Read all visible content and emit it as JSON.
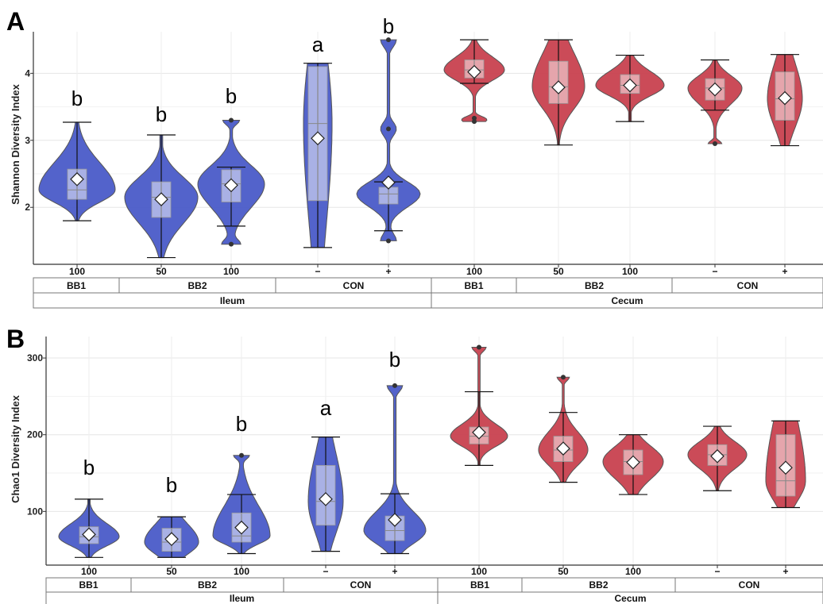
{
  "panels": [
    {
      "label": "A",
      "ylabel": "Shannon Diversity Index",
      "yticks": [
        2,
        3,
        4
      ],
      "ylim": [
        1.15,
        4.62
      ],
      "x_labels": [
        "100",
        "50",
        "100",
        "−",
        "+",
        "100",
        "50",
        "100",
        "−",
        "+"
      ],
      "group_labels": [
        "BB1",
        "BB2",
        "CON",
        "BB1",
        "BB2",
        "CON"
      ],
      "tissue_labels": [
        "Ileum",
        "Cecum"
      ],
      "letters": [
        "b",
        "b",
        "b",
        "a",
        "b",
        "",
        "",
        "",
        "",
        ""
      ]
    },
    {
      "label": "B",
      "ylabel": "Chao1 Diversity Index",
      "yticks": [
        100,
        200,
        300
      ],
      "ylim": [
        30,
        328
      ],
      "x_labels": [
        "100",
        "50",
        "100",
        "−",
        "+",
        "100",
        "50",
        "100",
        "−",
        "+"
      ],
      "group_labels": [
        "BB1",
        "BB2",
        "CON",
        "BB1",
        "BB2",
        "CON"
      ],
      "tissue_labels": [
        "Ileum",
        "Cecum"
      ],
      "letters": [
        "b",
        "b",
        "b",
        "a",
        "b",
        "",
        "",
        "",
        "",
        ""
      ]
    }
  ],
  "colors": {
    "ileum": "#4a5bc8",
    "cecum": "#c8414f"
  },
  "chart_data": [
    {
      "type": "violin",
      "title": "",
      "ylabel": "Shannon Diversity Index",
      "ylim": [
        1.15,
        4.62
      ],
      "grid": true,
      "categories": [
        "Ileum BB1 100",
        "Ileum BB2 50",
        "Ileum BB2 100",
        "Ileum CON −",
        "Ileum CON +",
        "Cecum BB1 100",
        "Cecum BB2 50",
        "Cecum BB2 100",
        "Cecum CON −",
        "Cecum CON +"
      ],
      "tissue": [
        "Ileum",
        "Ileum",
        "Ileum",
        "Ileum",
        "Ileum",
        "Cecum",
        "Cecum",
        "Cecum",
        "Cecum",
        "Cecum"
      ],
      "min": [
        1.8,
        1.25,
        1.45,
        1.4,
        1.5,
        3.28,
        2.93,
        3.28,
        2.95,
        2.92
      ],
      "max": [
        3.27,
        3.08,
        3.3,
        4.15,
        4.5,
        4.5,
        4.5,
        4.27,
        4.2,
        4.28
      ],
      "whisker_low": [
        1.8,
        1.25,
        1.72,
        1.4,
        1.65,
        3.85,
        2.93,
        3.28,
        3.45,
        2.92
      ],
      "whisker_high": [
        3.27,
        3.08,
        2.6,
        4.15,
        2.38,
        4.5,
        4.5,
        4.27,
        4.2,
        4.28
      ],
      "q1": [
        2.12,
        1.85,
        2.08,
        2.1,
        2.05,
        3.93,
        3.55,
        3.7,
        3.6,
        3.3
      ],
      "median": [
        2.26,
        2.15,
        2.35,
        3.25,
        2.2,
        4.05,
        3.8,
        3.82,
        3.78,
        3.62
      ],
      "q3": [
        2.57,
        2.38,
        2.56,
        4.1,
        2.3,
        4.2,
        4.18,
        3.98,
        3.92,
        4.02
      ],
      "mean": [
        2.42,
        2.12,
        2.33,
        3.03,
        2.37,
        4.02,
        3.79,
        3.82,
        3.76,
        3.63
      ],
      "outliers": [
        [],
        [],
        [
          1.45,
          3.3
        ],
        [],
        [
          4.5,
          3.17,
          1.5
        ],
        [
          3.33,
          3.28
        ],
        [],
        [],
        [
          2.95
        ],
        []
      ],
      "letters": [
        "b",
        "b",
        "b",
        "a",
        "b",
        "",
        "",
        "",
        "",
        ""
      ]
    },
    {
      "type": "violin",
      "title": "",
      "ylabel": "Chao1 Diversity Index",
      "ylim": [
        30,
        328
      ],
      "grid": true,
      "categories": [
        "Ileum BB1 100",
        "Ileum BB2 50",
        "Ileum BB2 100",
        "Ileum CON −",
        "Ileum CON +",
        "Cecum BB1 100",
        "Cecum BB2 50",
        "Cecum BB2 100",
        "Cecum CON −",
        "Cecum CON +"
      ],
      "tissue": [
        "Ileum",
        "Ileum",
        "Ileum",
        "Ileum",
        "Ileum",
        "Cecum",
        "Cecum",
        "Cecum",
        "Cecum",
        "Cecum"
      ],
      "min": [
        40,
        40,
        45,
        48,
        45,
        160,
        138,
        122,
        127,
        105
      ],
      "max": [
        116,
        93,
        173,
        197,
        264,
        314,
        275,
        200,
        211,
        218
      ],
      "whisker_low": [
        40,
        40,
        45,
        48,
        45,
        160,
        138,
        122,
        127,
        105
      ],
      "whisker_high": [
        116,
        93,
        122,
        197,
        123,
        256,
        229,
        200,
        211,
        218
      ],
      "q1": [
        58,
        48,
        60,
        82,
        62,
        188,
        165,
        148,
        160,
        120
      ],
      "median": [
        67,
        60,
        68,
        113,
        75,
        198,
        180,
        165,
        174,
        140
      ],
      "q3": [
        80,
        78,
        98,
        160,
        94,
        210,
        198,
        180,
        187,
        200
      ],
      "mean": [
        70,
        64,
        79,
        116,
        89,
        203,
        182,
        164,
        172,
        157
      ],
      "outliers": [
        [],
        [],
        [
          173
        ],
        [],
        [
          264
        ],
        [
          314
        ],
        [
          275
        ],
        [],
        [],
        []
      ],
      "letters": [
        "b",
        "b",
        "b",
        "a",
        "b",
        "",
        "",
        "",
        "",
        ""
      ]
    }
  ]
}
